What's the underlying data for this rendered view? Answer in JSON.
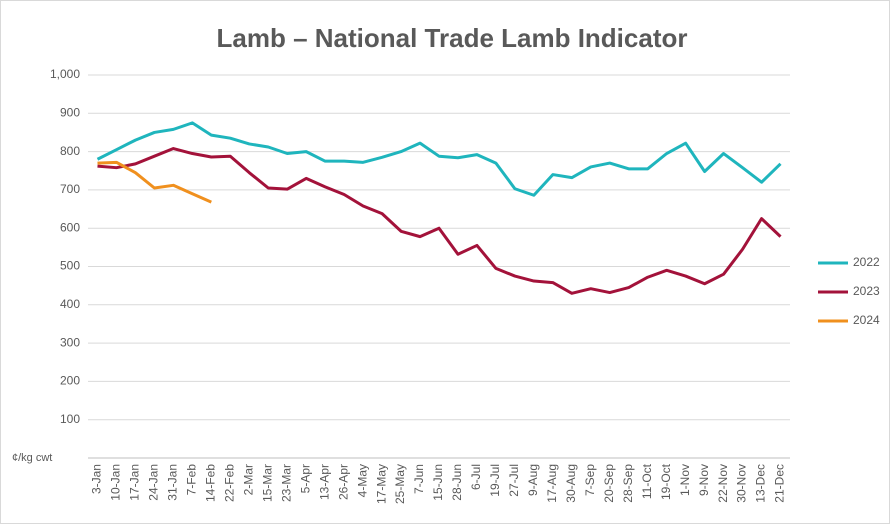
{
  "chart_data": {
    "type": "line",
    "title": "Lamb – National Trade Lamb Indicator",
    "y_label": "¢/kg cwt",
    "categories": [
      "3-Jan",
      "10-Jan",
      "17-Jan",
      "24-Jan",
      "31-Jan",
      "7-Feb",
      "14-Feb",
      "22-Feb",
      "2-Mar",
      "15-Mar",
      "23-Mar",
      "5-Apr",
      "13-Apr",
      "26-Apr",
      "4-May",
      "17-May",
      "25-May",
      "7-Jun",
      "15-Jun",
      "28-Jun",
      "6-Jul",
      "19-Jul",
      "27-Jul",
      "9-Aug",
      "17-Aug",
      "30-Aug",
      "7-Sep",
      "20-Sep",
      "28-Sep",
      "11-Oct",
      "19-Oct",
      "1-Nov",
      "9-Nov",
      "22-Nov",
      "30-Nov",
      "13-Dec",
      "21-Dec"
    ],
    "series": [
      {
        "name": "2022",
        "color": "#1fb5bd",
        "values": [
          780,
          805,
          830,
          850,
          858,
          875,
          843,
          835,
          820,
          812,
          795,
          800,
          775,
          775,
          772,
          785,
          800,
          822,
          788,
          784,
          792,
          770,
          703,
          686,
          740,
          732,
          760,
          770,
          755,
          755,
          795,
          822,
          748,
          795,
          758,
          720,
          768
        ]
      },
      {
        "name": "2023",
        "color": "#a3123a",
        "values": [
          762,
          758,
          768,
          788,
          808,
          795,
          786,
          788,
          745,
          705,
          702,
          730,
          708,
          688,
          658,
          638,
          592,
          578,
          600,
          532,
          555,
          495,
          475,
          462,
          458,
          430,
          442,
          432,
          445,
          472,
          490,
          475,
          455,
          480,
          545,
          625,
          578
        ]
      },
      {
        "name": "2024",
        "color": "#f0901e",
        "values": [
          770,
          772,
          745,
          705,
          712,
          690,
          668,
          null,
          null,
          null,
          null,
          null,
          null,
          null,
          null,
          null,
          null,
          null,
          null,
          null,
          null,
          null,
          null,
          null,
          null,
          null,
          null,
          null,
          null,
          null,
          null,
          null,
          null,
          null,
          null,
          null,
          null
        ]
      }
    ],
    "ylim": [
      0,
      1000
    ],
    "yticks": [
      100,
      200,
      300,
      400,
      500,
      600,
      700,
      800,
      900,
      {
        "value": 1000,
        "label": "1,000"
      }
    ],
    "grid": true,
    "legend": "right"
  }
}
